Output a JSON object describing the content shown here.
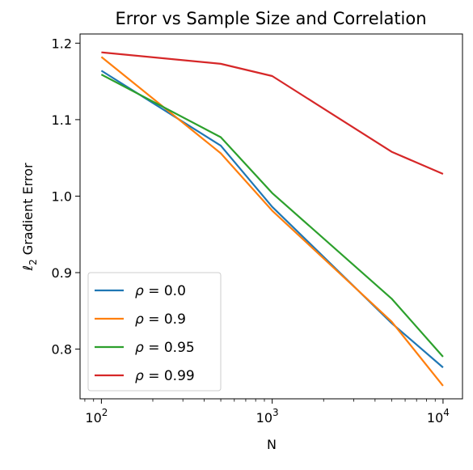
{
  "chart_data": {
    "type": "line",
    "title": "Error vs Sample Size and Correlation",
    "xlabel": "N",
    "ylabel": "ℓ",
    "ylabel_sub": "2",
    "ylabel_rest": " Gradient Error",
    "xscale": "log",
    "xlim": [
      75,
      13000
    ],
    "ylim": [
      0.735,
      1.212
    ],
    "x": [
      100,
      500,
      1000,
      5000,
      10000
    ],
    "x_ticks": [
      {
        "value": 100,
        "base": "10",
        "exp": "2"
      },
      {
        "value": 1000,
        "base": "10",
        "exp": "3"
      },
      {
        "value": 10000,
        "base": "10",
        "exp": "4"
      }
    ],
    "y_ticks": [
      {
        "value": 0.8,
        "label": "0.8"
      },
      {
        "value": 0.9,
        "label": "0.9"
      },
      {
        "value": 1.0,
        "label": "1.0"
      },
      {
        "value": 1.1,
        "label": "1.1"
      },
      {
        "value": 1.2,
        "label": "1.2"
      }
    ],
    "grid": false,
    "legend_position": "lower-left",
    "series": [
      {
        "name": "ρ = 0.0",
        "color": "#1f77b4",
        "values": [
          1.164,
          1.066,
          0.986,
          0.834,
          0.776
        ]
      },
      {
        "name": "ρ = 0.9",
        "color": "#ff7f0e",
        "values": [
          1.182,
          1.056,
          0.981,
          0.836,
          0.752
        ]
      },
      {
        "name": "ρ = 0.95",
        "color": "#2ca02c",
        "values": [
          1.159,
          1.077,
          1.004,
          0.866,
          0.79
        ]
      },
      {
        "name": "ρ = 0.99",
        "color": "#d62728",
        "values": [
          1.188,
          1.173,
          1.157,
          1.058,
          1.029
        ]
      }
    ]
  }
}
